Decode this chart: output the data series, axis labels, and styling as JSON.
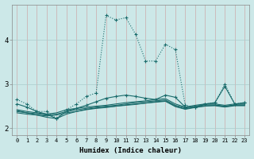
{
  "xlabel": "Humidex (Indice chaleur)",
  "bg_color": "#cce8e8",
  "grid_color": "#aacccc",
  "line_color": "#1a6b6b",
  "x_values": [
    0,
    1,
    2,
    3,
    4,
    5,
    6,
    7,
    8,
    9,
    10,
    11,
    12,
    13,
    14,
    15,
    16,
    17,
    18,
    19,
    20,
    21,
    22,
    23
  ],
  "series": [
    {
      "y": [
        2.65,
        2.55,
        2.38,
        2.38,
        2.22,
        2.42,
        2.55,
        2.72,
        2.8,
        4.55,
        4.45,
        4.5,
        4.12,
        3.52,
        3.52,
        3.9,
        3.78,
        2.52,
        2.48,
        2.55,
        2.58,
        3.0,
        2.55,
        2.58
      ],
      "style": "dotted",
      "marker": "+"
    },
    {
      "y": [
        2.42,
        2.38,
        2.35,
        2.32,
        2.35,
        2.42,
        2.45,
        2.48,
        2.5,
        2.52,
        2.55,
        2.58,
        2.6,
        2.62,
        2.65,
        2.67,
        2.55,
        2.48,
        2.52,
        2.55,
        2.55,
        2.52,
        2.55,
        2.55
      ],
      "style": "solid",
      "marker": null
    },
    {
      "y": [
        2.38,
        2.35,
        2.33,
        2.3,
        2.32,
        2.38,
        2.42,
        2.45,
        2.48,
        2.5,
        2.52,
        2.55,
        2.58,
        2.6,
        2.62,
        2.64,
        2.52,
        2.46,
        2.5,
        2.53,
        2.53,
        2.5,
        2.53,
        2.53
      ],
      "style": "solid",
      "marker": null
    },
    {
      "y": [
        2.35,
        2.32,
        2.3,
        2.28,
        2.3,
        2.35,
        2.38,
        2.42,
        2.45,
        2.47,
        2.5,
        2.53,
        2.55,
        2.57,
        2.6,
        2.62,
        2.5,
        2.44,
        2.48,
        2.51,
        2.51,
        2.48,
        2.51,
        2.51
      ],
      "style": "solid",
      "marker": null
    },
    {
      "y": [
        2.55,
        2.48,
        2.38,
        2.32,
        2.22,
        2.38,
        2.45,
        2.52,
        2.6,
        2.68,
        2.72,
        2.75,
        2.72,
        2.68,
        2.65,
        2.75,
        2.7,
        2.48,
        2.48,
        2.55,
        2.58,
        2.95,
        2.55,
        2.58
      ],
      "style": "solid",
      "marker": "+"
    },
    {
      "y": [
        2.4,
        2.35,
        2.3,
        2.25,
        2.22,
        2.32,
        2.38,
        2.43,
        2.46,
        2.48,
        2.5,
        2.52,
        2.54,
        2.57,
        2.59,
        2.61,
        2.49,
        2.43,
        2.47,
        2.5,
        2.52,
        2.49,
        2.52,
        2.52
      ],
      "style": "solid",
      "marker": null
    }
  ],
  "yticks": [
    2,
    3,
    4
  ],
  "xticks": [
    0,
    1,
    2,
    3,
    4,
    5,
    6,
    7,
    8,
    9,
    10,
    11,
    12,
    13,
    14,
    15,
    16,
    17,
    18,
    19,
    20,
    21,
    22,
    23
  ],
  "ylim": [
    1.85,
    4.8
  ],
  "xlim": [
    -0.5,
    23.5
  ]
}
